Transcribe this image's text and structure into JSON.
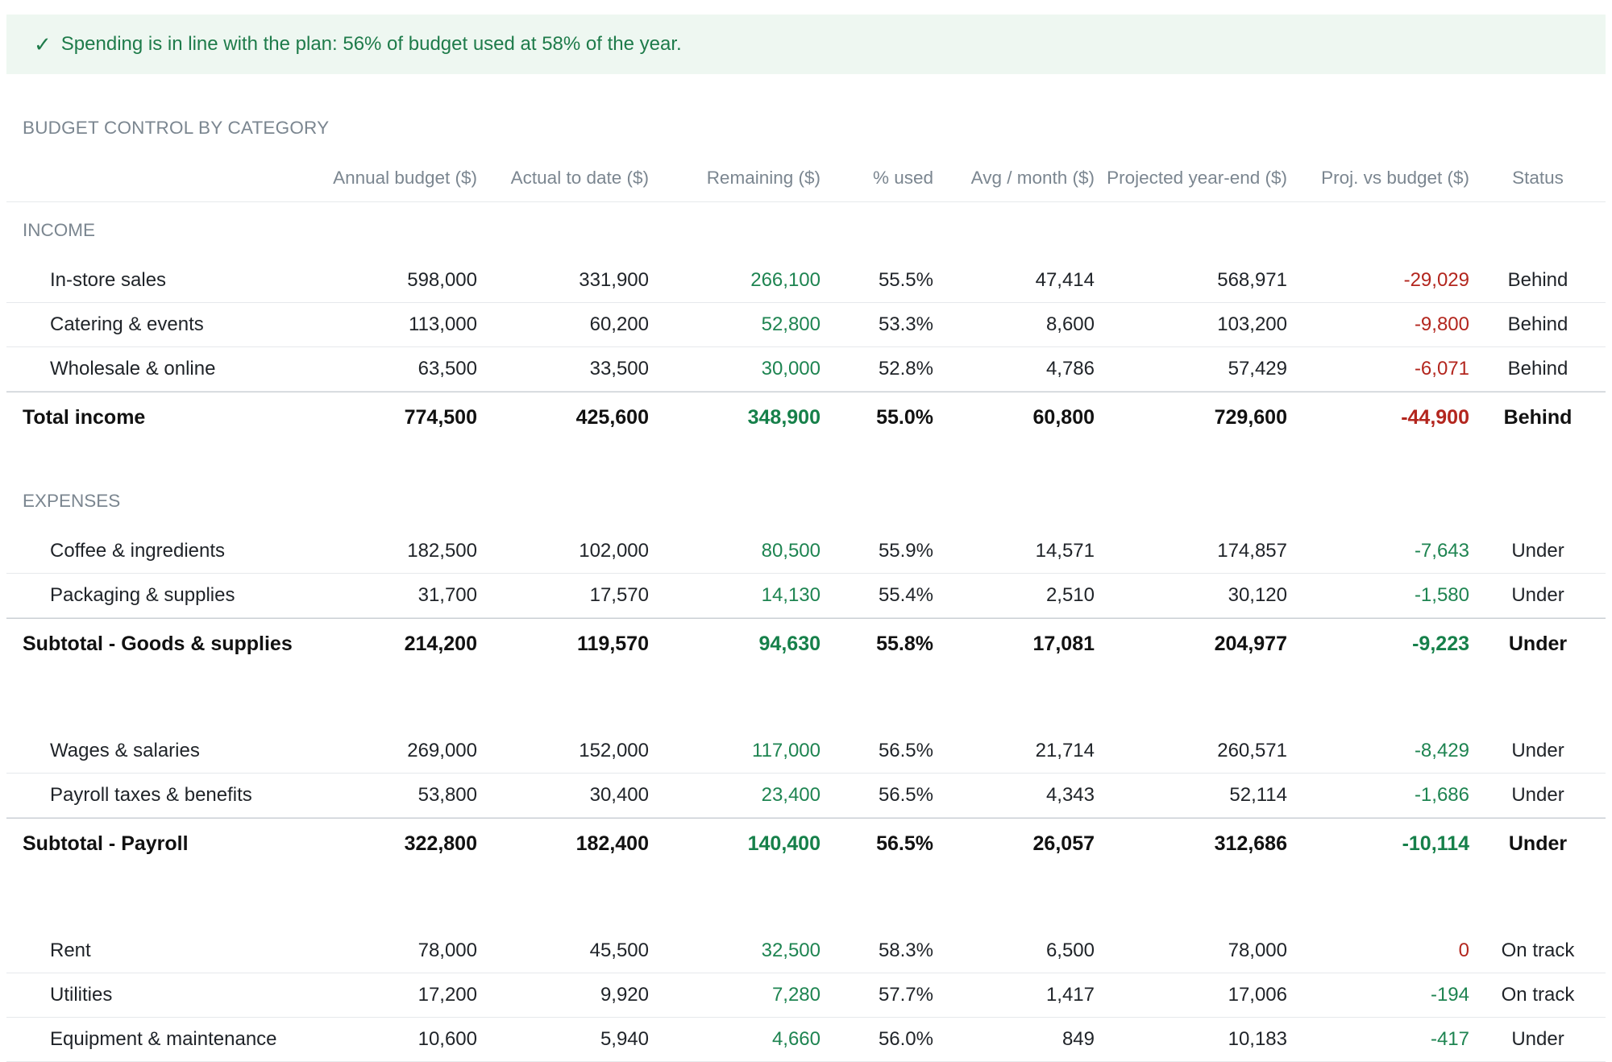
{
  "banner": {
    "icon": "check-icon",
    "text": "Spending is in line with the plan: 56% of budget used at 58% of the year."
  },
  "section_title": "BUDGET CONTROL BY CATEGORY",
  "columns": {
    "budget": "Annual budget ($)",
    "actual": "Actual to date ($)",
    "remaining": "Remaining ($)",
    "pct": "% used",
    "avg": "Avg / month ($)",
    "proj": "Projected year-end ($)",
    "var": "Proj. vs budget ($)",
    "status": "Status"
  },
  "income": {
    "label": "INCOME",
    "rows": [
      {
        "label": "In-store sales",
        "budget": "598,000",
        "actual": "331,900",
        "remaining": "266,100",
        "pct": "55.5%",
        "avg": "47,414",
        "proj": "568,971",
        "var": "-29,029",
        "status": "Behind"
      },
      {
        "label": "Catering & events",
        "budget": "113,000",
        "actual": "60,200",
        "remaining": "52,800",
        "pct": "53.3%",
        "avg": "8,600",
        "proj": "103,200",
        "var": "-9,800",
        "status": "Behind"
      },
      {
        "label": "Wholesale & online",
        "budget": "63,500",
        "actual": "33,500",
        "remaining": "30,000",
        "pct": "52.8%",
        "avg": "4,786",
        "proj": "57,429",
        "var": "-6,071",
        "status": "Behind"
      }
    ],
    "total": {
      "label": "Total income",
      "budget": "774,500",
      "actual": "425,600",
      "remaining": "348,900",
      "pct": "55.0%",
      "avg": "60,800",
      "proj": "729,600",
      "var": "-44,900",
      "status": "Behind"
    }
  },
  "expenses": {
    "label": "EXPENSES",
    "goods": {
      "rows": [
        {
          "label": "Coffee & ingredients",
          "budget": "182,500",
          "actual": "102,000",
          "remaining": "80,500",
          "pct": "55.9%",
          "avg": "14,571",
          "proj": "174,857",
          "var": "-7,643",
          "status": "Under"
        },
        {
          "label": "Packaging & supplies",
          "budget": "31,700",
          "actual": "17,570",
          "remaining": "14,130",
          "pct": "55.4%",
          "avg": "2,510",
          "proj": "30,120",
          "var": "-1,580",
          "status": "Under"
        }
      ],
      "subtotal": {
        "label": "Subtotal - Goods & supplies",
        "budget": "214,200",
        "actual": "119,570",
        "remaining": "94,630",
        "pct": "55.8%",
        "avg": "17,081",
        "proj": "204,977",
        "var": "-9,223",
        "status": "Under"
      }
    },
    "payroll": {
      "rows": [
        {
          "label": "Wages & salaries",
          "budget": "269,000",
          "actual": "152,000",
          "remaining": "117,000",
          "pct": "56.5%",
          "avg": "21,714",
          "proj": "260,571",
          "var": "-8,429",
          "status": "Under"
        },
        {
          "label": "Payroll taxes & benefits",
          "budget": "53,800",
          "actual": "30,400",
          "remaining": "23,400",
          "pct": "56.5%",
          "avg": "4,343",
          "proj": "52,114",
          "var": "-1,686",
          "status": "Under"
        }
      ],
      "subtotal": {
        "label": "Subtotal - Payroll",
        "budget": "322,800",
        "actual": "182,400",
        "remaining": "140,400",
        "pct": "56.5%",
        "avg": "26,057",
        "proj": "312,686",
        "var": "-10,114",
        "status": "Under"
      }
    },
    "occupancy": {
      "rows": [
        {
          "label": "Rent",
          "budget": "78,000",
          "actual": "45,500",
          "remaining": "32,500",
          "pct": "58.3%",
          "avg": "6,500",
          "proj": "78,000",
          "var": "0",
          "status": "On track"
        },
        {
          "label": "Utilities",
          "budget": "17,200",
          "actual": "9,920",
          "remaining": "7,280",
          "pct": "57.7%",
          "avg": "1,417",
          "proj": "17,006",
          "var": "-194",
          "status": "On track"
        },
        {
          "label": "Equipment & maintenance",
          "budget": "10,600",
          "actual": "5,940",
          "remaining": "4,660",
          "pct": "56.0%",
          "avg": "849",
          "proj": "10,183",
          "var": "-417",
          "status": "Under"
        }
      ]
    }
  },
  "colors": {
    "positive": "#1e8451",
    "negative": "#b3261e",
    "banner_bg": "#eef7f1",
    "muted": "#7b8690"
  }
}
